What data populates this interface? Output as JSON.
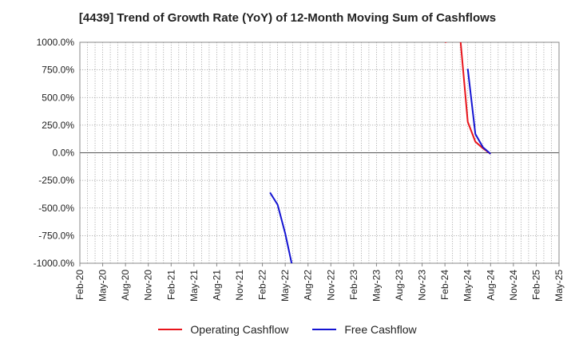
{
  "chart_data": {
    "type": "line",
    "title": "[4439]  Trend of Growth Rate (YoY) of 12-Month Moving Sum of Cashflows",
    "xlabel": "",
    "ylabel": "",
    "ylim": [
      -1000,
      1000
    ],
    "y_ticks": [
      1000,
      750,
      500,
      250,
      0,
      -250,
      -500,
      -750,
      -1000
    ],
    "y_tick_labels": [
      "1000.0%",
      "750.0%",
      "500.0%",
      "250.0%",
      "0.0%",
      "-250.0%",
      "-500.0%",
      "-750.0%",
      "-1000.0%"
    ],
    "x_tick_labels": [
      "Feb-20",
      "May-20",
      "Aug-20",
      "Nov-20",
      "Feb-21",
      "May-21",
      "Aug-21",
      "Nov-21",
      "Feb-22",
      "May-22",
      "Aug-22",
      "Nov-22",
      "Feb-23",
      "May-23",
      "Aug-23",
      "Nov-23",
      "Feb-24",
      "May-24",
      "Aug-24",
      "Nov-24",
      "Feb-25",
      "May-25"
    ],
    "x_start": "Feb-20",
    "x_end": "May-25",
    "grid": true,
    "legend_position": "bottom-center",
    "series": [
      {
        "name": "Operating Cashflow",
        "color": "#e8141b",
        "segments": [
          [
            [
              "Feb-24",
              1000
            ],
            [
              "Apr-24",
              1050
            ],
            [
              "May-24",
              280
            ],
            [
              "Jun-24",
              100
            ],
            [
              "Jul-24",
              40
            ],
            [
              "Aug-24",
              -10
            ]
          ]
        ]
      },
      {
        "name": "Free Cashflow",
        "color": "#1414d2",
        "segments": [
          [
            [
              "Mar-22",
              -360
            ],
            [
              "Apr-22",
              -470
            ],
            [
              "May-22",
              -730
            ],
            [
              "Jun-22",
              -1050
            ]
          ],
          [
            [
              "May-24",
              760
            ],
            [
              "Jun-24",
              170
            ],
            [
              "Jul-24",
              50
            ],
            [
              "Aug-24",
              -10
            ]
          ]
        ]
      }
    ]
  }
}
